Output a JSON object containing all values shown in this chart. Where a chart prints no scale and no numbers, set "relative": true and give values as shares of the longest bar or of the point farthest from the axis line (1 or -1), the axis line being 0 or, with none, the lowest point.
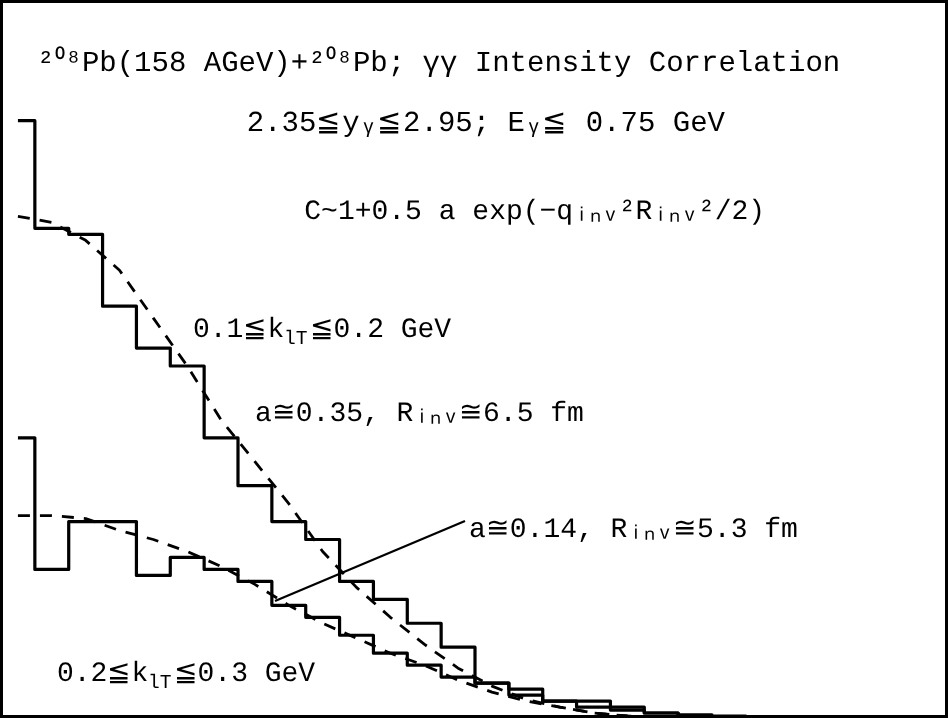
{
  "chart_data": {
    "type": "step",
    "relative": true,
    "grid": false,
    "title": "²⁰⁸Pb(158 AGeV)+²⁰⁸Pb; γγ Intensity Correlation",
    "subtitle": "2.35≦yᵧ≦2.95; Eᵧ≦ 0.75 GeV",
    "annotations": [
      "C~1+0.5 a exp(−qᵢₙᵥ²Rᵢₙᵥ²/2)",
      "0.1≦k$_{lT}$≦0.2 GeV",
      "a≅0.35, Rᵢₙᵥ≅6.5 fm",
      "a≅0.14, Rᵢₙᵥ≅5.3 fm",
      "0.2≦k$_{lT}$≦0.3 GeV"
    ],
    "categories": [
      null,
      null,
      null,
      null,
      null,
      null,
      null,
      null,
      null,
      null,
      null,
      null,
      null,
      null,
      null,
      null,
      null,
      null,
      null,
      null,
      null,
      null,
      null,
      null,
      null,
      null,
      null,
      null
    ],
    "series": [
      {
        "color": "#000000",
        "values": [
          1.0,
          0.82,
          0.81,
          0.69,
          0.62,
          0.59,
          0.47,
          0.39,
          0.33,
          0.3,
          0.23,
          0.2,
          0.16,
          0.12,
          0.06,
          0.05,
          0.03,
          0.03,
          0.02,
          0.01,
          0.004,
          0.003,
          0.002,
          0.002,
          0.001,
          null,
          null,
          null
        ]
      },
      {
        "color": "#000000",
        "values": [
          0.47,
          0.25,
          0.33,
          0.33,
          0.24,
          0.27,
          0.25,
          0.23,
          0.19,
          0.17,
          0.14,
          0.11,
          0.09,
          0.07,
          0.06,
          0.04,
          0.03,
          0.02,
          0.015,
          0.01,
          0.007,
          0.005,
          0.003,
          0.002,
          0.001,
          null,
          null,
          null
        ]
      },
      {
        "type": "line",
        "line_style": "dashed",
        "color": "#000000",
        "values": [
          0.84,
          0.83,
          0.8,
          0.75,
          0.67,
          0.59,
          0.5,
          0.43,
          0.36,
          0.28,
          0.22,
          0.17,
          0.125,
          0.085,
          0.055,
          0.033,
          0.02,
          0.01,
          0.005,
          0.003,
          0.002,
          null,
          null,
          null,
          null,
          null,
          null,
          null
        ]
      },
      {
        "type": "line",
        "line_style": "dashed",
        "color": "#000000",
        "values": [
          0.34,
          0.34,
          0.335,
          0.315,
          0.3,
          0.28,
          0.255,
          0.225,
          0.19,
          0.16,
          0.135,
          0.11,
          0.09,
          0.065,
          0.045,
          0.03,
          0.02,
          0.01,
          0.005,
          0.003,
          null,
          null,
          null,
          null,
          null,
          null,
          null,
          null
        ]
      }
    ]
  }
}
